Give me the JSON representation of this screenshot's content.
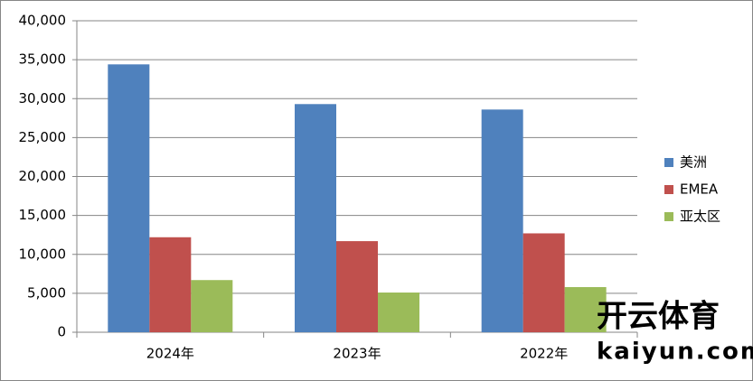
{
  "chart_data": {
    "type": "bar",
    "categories": [
      "2024年",
      "2023年",
      "2022年"
    ],
    "series": [
      {
        "name": "美洲",
        "color": "#4f81bd",
        "values": [
          34400,
          29300,
          28600
        ]
      },
      {
        "name": "EMEA",
        "color": "#c0504d",
        "values": [
          12200,
          11700,
          12700
        ]
      },
      {
        "name": "亚太区",
        "color": "#9bbb59",
        "values": [
          6700,
          5100,
          5800
        ]
      }
    ],
    "ylim": [
      0,
      40000
    ],
    "yticks": [
      0,
      {
        "value": 5000,
        "label": "5,000"
      },
      {
        "value": 10000,
        "label": "10,000"
      },
      {
        "value": 15000,
        "label": "15,000"
      },
      {
        "value": 20000,
        "label": "20,000"
      },
      {
        "value": 25000,
        "label": "25,000"
      },
      {
        "value": 30000,
        "label": "30,000"
      },
      {
        "value": 35000,
        "label": "35,000"
      },
      {
        "value": 40000,
        "label": "40,000"
      }
    ],
    "grid": true,
    "legend": "right",
    "watermark": [
      "开云体育",
      "kaiyun.com"
    ]
  }
}
